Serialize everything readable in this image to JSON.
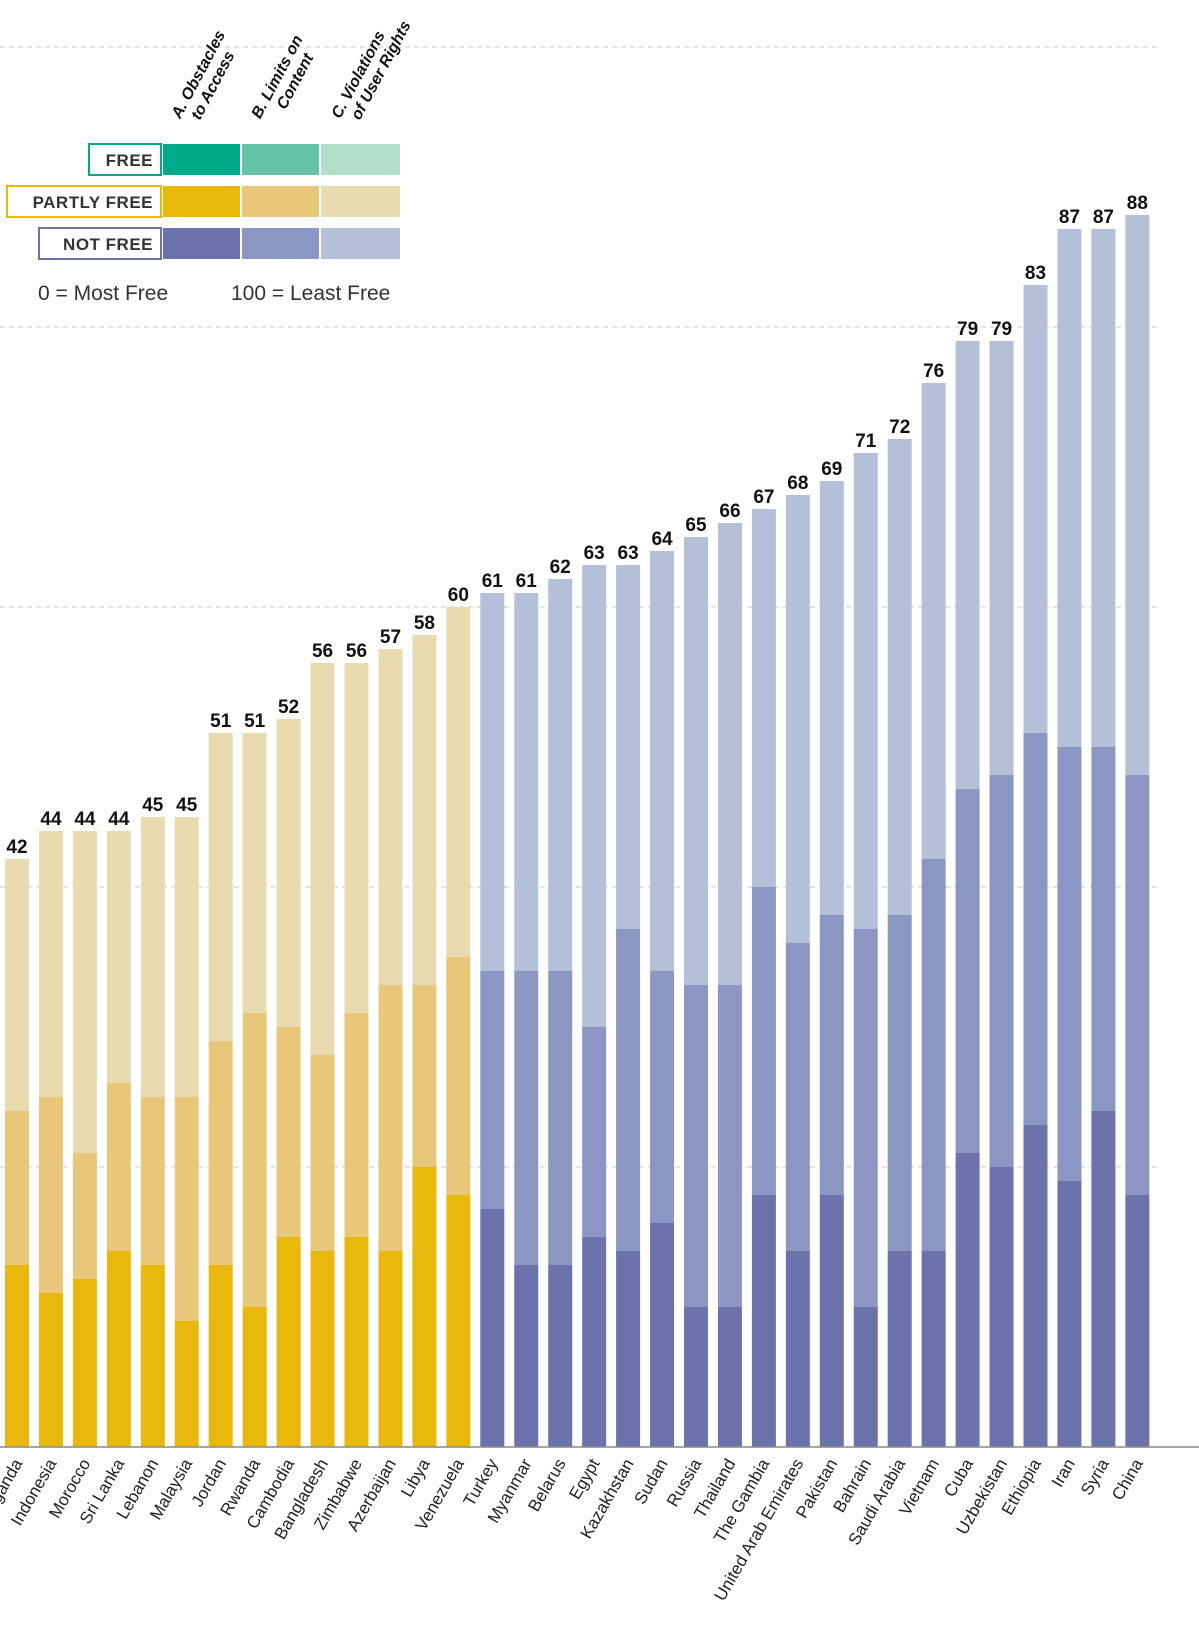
{
  "legend": {
    "components": [
      "A. Obstacles to Access",
      "B. Limits on Content",
      "C. Violations of User Rights"
    ],
    "component_lines": [
      [
        "A. Obstacles",
        "to Access"
      ],
      [
        "B. Limits on",
        "Content"
      ],
      [
        "C. Violations",
        "of User Rights"
      ]
    ],
    "statuses": [
      {
        "label": "FREE",
        "colors": [
          "#00a98a",
          "#66c3a8",
          "#b2dfcc"
        ]
      },
      {
        "label": "PARTLY FREE",
        "colors": [
          "#e8b80d",
          "#e8c77a",
          "#e9dbb0"
        ]
      },
      {
        "label": "NOT FREE",
        "colors": [
          "#6c72ab",
          "#8b97c2",
          "#b4c0d8"
        ]
      }
    ],
    "scale_min": "0 = Most Free",
    "scale_max": "100 = Least Free"
  },
  "chart_data": {
    "type": "bar",
    "stacked": true,
    "ylim": [
      0,
      100
    ],
    "grid": true,
    "categories": [
      "Uganda",
      "Indonesia",
      "Morocco",
      "Sri Lanka",
      "Lebanon",
      "Malaysia",
      "Jordan",
      "Rwanda",
      "Cambodia",
      "Bangladesh",
      "Zimbabwe",
      "Azerbaijan",
      "Libya",
      "Venezuela",
      "Turkey",
      "Myanmar",
      "Belarus",
      "Egypt",
      "Kazakhstan",
      "Sudan",
      "Russia",
      "Thailand",
      "The Gambia",
      "United Arab Emirates",
      "Pakistan",
      "Bahrain",
      "Saudi Arabia",
      "Vietnam",
      "Cuba",
      "Uzbekistan",
      "Ethiopia",
      "Iran",
      "Syria",
      "China"
    ],
    "status": [
      "Partly Free",
      "Partly Free",
      "Partly Free",
      "Partly Free",
      "Partly Free",
      "Partly Free",
      "Partly Free",
      "Partly Free",
      "Partly Free",
      "Partly Free",
      "Partly Free",
      "Partly Free",
      "Partly Free",
      "Partly Free",
      "Not Free",
      "Not Free",
      "Not Free",
      "Not Free",
      "Not Free",
      "Not Free",
      "Not Free",
      "Not Free",
      "Not Free",
      "Not Free",
      "Not Free",
      "Not Free",
      "Not Free",
      "Not Free",
      "Not Free",
      "Not Free",
      "Not Free",
      "Not Free",
      "Not Free",
      "Not Free"
    ],
    "totals": [
      42,
      44,
      44,
      44,
      45,
      45,
      51,
      51,
      52,
      56,
      56,
      57,
      58,
      60,
      61,
      61,
      62,
      63,
      63,
      64,
      65,
      66,
      67,
      68,
      69,
      71,
      72,
      76,
      79,
      79,
      83,
      87,
      87,
      88
    ],
    "series": [
      {
        "name": "A. Obstacles to Access",
        "values": [
          13,
          11,
          12,
          14,
          13,
          9,
          13,
          10,
          15,
          14,
          15,
          14,
          20,
          18,
          17,
          13,
          13,
          15,
          14,
          16,
          10,
          10,
          18,
          14,
          18,
          10,
          14,
          14,
          21,
          20,
          23,
          19,
          24,
          18
        ]
      },
      {
        "name": "B. Limits on Content",
        "values": [
          11,
          14,
          9,
          12,
          12,
          16,
          16,
          21,
          15,
          14,
          16,
          19,
          13,
          17,
          17,
          21,
          21,
          15,
          23,
          18,
          23,
          23,
          22,
          22,
          20,
          27,
          24,
          28,
          26,
          28,
          28,
          31,
          26,
          30
        ]
      },
      {
        "name": "C. Violations of User Rights",
        "values": [
          18,
          19,
          23,
          18,
          20,
          20,
          22,
          20,
          22,
          28,
          25,
          24,
          25,
          25,
          27,
          27,
          28,
          33,
          26,
          30,
          32,
          33,
          27,
          32,
          31,
          34,
          34,
          34,
          32,
          31,
          32,
          37,
          37,
          40
        ]
      }
    ]
  }
}
